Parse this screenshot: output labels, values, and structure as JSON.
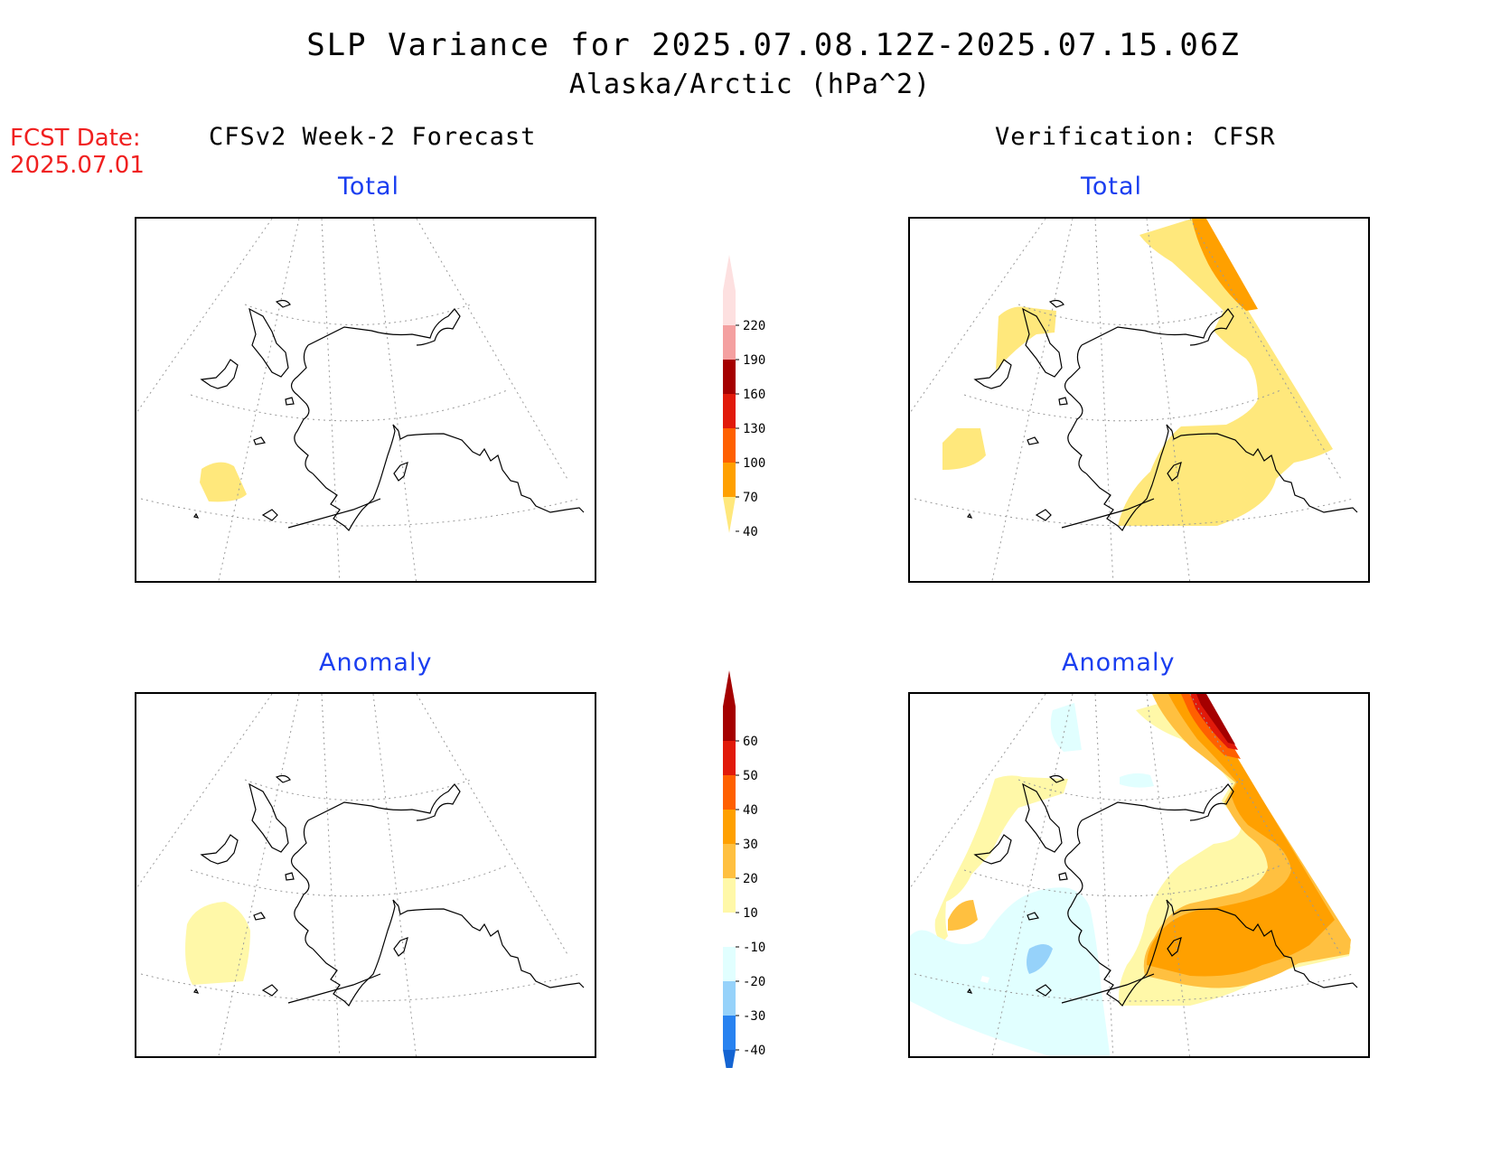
{
  "title": {
    "line1": "SLP Variance for 2025.07.08.12Z-2025.07.15.06Z",
    "line2": "Alaska/Arctic (hPa^2)"
  },
  "fcst_date": {
    "label": "FCST Date:",
    "value": "2025.07.01"
  },
  "columns": {
    "left": "CFSv2 Week-2 Forecast",
    "right": "Verification: CFSR"
  },
  "panels": {
    "fcst_total": {
      "label": "Total"
    },
    "fcst_anom": {
      "label": "Anomaly"
    },
    "ver_total": {
      "label": "Total"
    },
    "ver_anom": {
      "label": "Anomaly"
    }
  },
  "colorbar_total": {
    "ticks": [
      "40",
      "70",
      "100",
      "130",
      "160",
      "190",
      "220"
    ],
    "colors": [
      "#ffe87c",
      "#ffa000",
      "#ff6000",
      "#e11a0a",
      "#a50000",
      "#f4a0a0",
      "#fde0e0"
    ]
  },
  "colorbar_anom": {
    "ticks": [
      "-40",
      "-30",
      "-20",
      "-10",
      "10",
      "20",
      "30",
      "40",
      "50",
      "60"
    ],
    "colors": [
      "#1464d2",
      "#2882f0",
      "#96d2fa",
      "#e1ffff",
      "#ffffff",
      "#fff8a8",
      "#ffc040",
      "#ffa000",
      "#ff6000",
      "#e11a0a",
      "#a50000"
    ]
  }
}
